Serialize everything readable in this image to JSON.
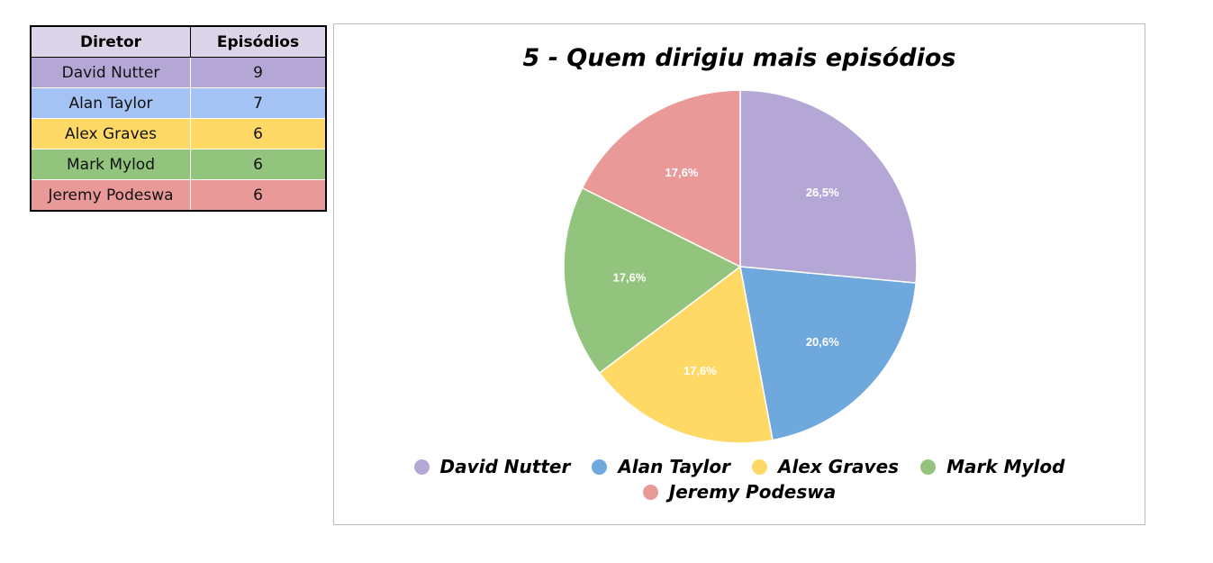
{
  "table": {
    "headers": [
      "Diretor",
      "Episódios"
    ],
    "rows": [
      {
        "name": "David Nutter",
        "value": "9",
        "color": "#b4a7d6"
      },
      {
        "name": "Alan Taylor",
        "value": "7",
        "color": "#a4c2f4"
      },
      {
        "name": "Alex Graves",
        "value": "6",
        "color": "#ffd966"
      },
      {
        "name": "Mark Mylod",
        "value": "6",
        "color": "#93c47d"
      },
      {
        "name": "Jeremy Podeswa",
        "value": "6",
        "color": "#ea9999"
      }
    ]
  },
  "chart_data": {
    "type": "pie",
    "title": "5 - Quem dirigiu mais episódios",
    "categories": [
      "David Nutter",
      "Alan Taylor",
      "Alex Graves",
      "Mark Mylod",
      "Jeremy Podeswa"
    ],
    "values": [
      9,
      7,
      6,
      6,
      6
    ],
    "percent_labels": [
      "26,5%",
      "20,6%",
      "17,6%",
      "17,6%",
      "17,6%"
    ],
    "colors": [
      "#b4a7d6",
      "#6fa8dc",
      "#ffd966",
      "#93c47d",
      "#ea9999"
    ],
    "legend_position": "bottom"
  }
}
